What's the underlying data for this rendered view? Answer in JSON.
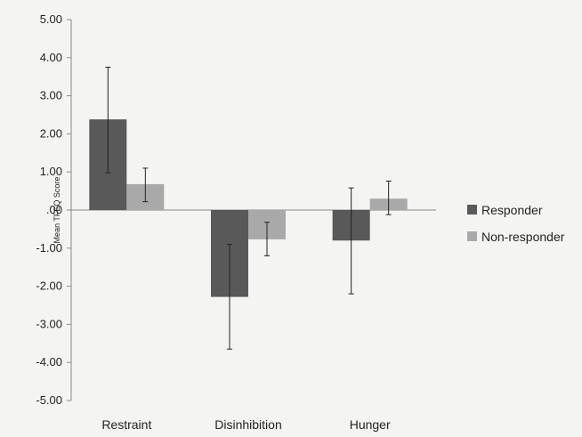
{
  "chart_data": {
    "type": "bar",
    "title": "",
    "xlabel": "",
    "ylabel": "Mean TFEQ Score",
    "ylim": [
      -5,
      5
    ],
    "yticks": [
      5,
      4,
      3,
      2,
      1,
      0,
      -1,
      -2,
      -3,
      -4,
      -5
    ],
    "ytick_labels": [
      "5.00",
      "4.00",
      "3.00",
      "2.00",
      "1.00",
      ".00",
      "-1.00",
      "-2.00",
      "-3.00",
      "-4.00",
      "-5.00"
    ],
    "categories": [
      "Restraint",
      "Disinhibition",
      "Hunger"
    ],
    "series": [
      {
        "name": "Responder",
        "color": "#595959",
        "values": [
          2.38,
          -2.28,
          -0.8
        ],
        "error_low": [
          0.98,
          -3.65,
          -2.2
        ],
        "error_high": [
          3.75,
          -0.9,
          0.58
        ]
      },
      {
        "name": "Non-responder",
        "color": "#a9a9a9",
        "values": [
          0.68,
          -0.77,
          0.3
        ],
        "error_low": [
          0.22,
          -1.2,
          -0.12
        ],
        "error_high": [
          1.1,
          -0.32,
          0.76
        ]
      }
    ],
    "grid": false,
    "legend_position": "right"
  }
}
